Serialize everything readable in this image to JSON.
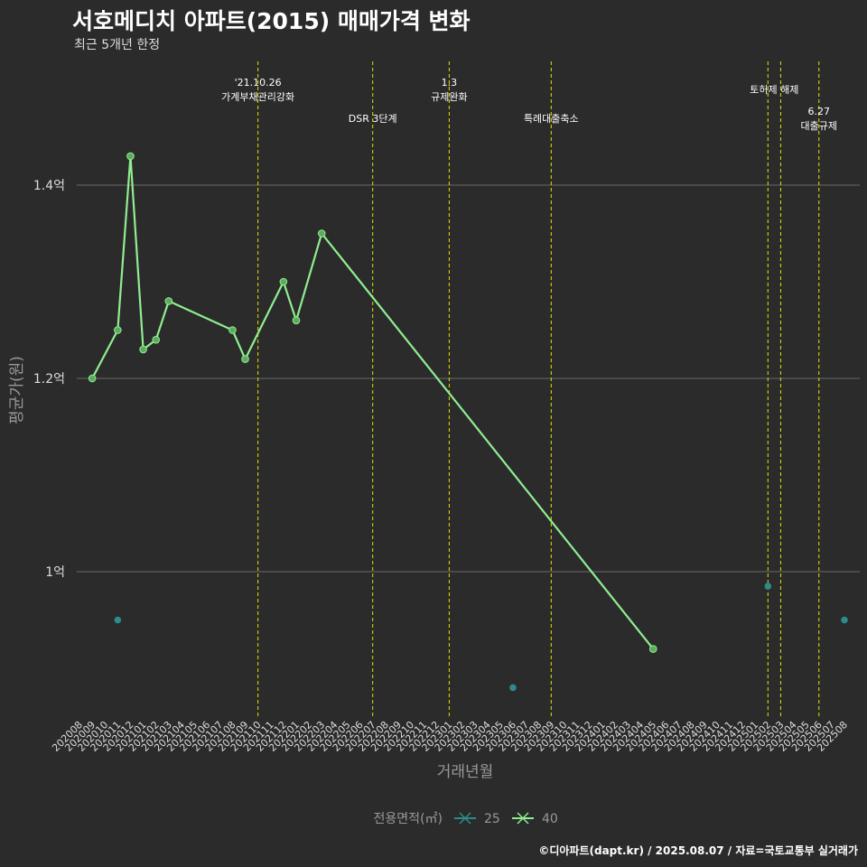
{
  "title": "서호메디치 아파트(2015) 매매가격 변화",
  "subtitle": "최근 5개년 한정",
  "caption": "©디아파트(dapt.kr) / 2025.08.07 / 자료=국토교통부 실거래가",
  "chart_data": {
    "type": "line",
    "xlabel": "거래년월",
    "ylabel": "평균가(원)",
    "ylim": [
      0.85,
      1.55
    ],
    "yticks": [
      {
        "value": 1.0,
        "label": "1억"
      },
      {
        "value": 1.2,
        "label": "1.2억"
      },
      {
        "value": 1.4,
        "label": "1.4억"
      }
    ],
    "x": [
      "202008",
      "202009",
      "202010",
      "202011",
      "202012",
      "202101",
      "202102",
      "202103",
      "202104",
      "202105",
      "202106",
      "202107",
      "202108",
      "202109",
      "202110",
      "202111",
      "202112",
      "202201",
      "202202",
      "202203",
      "202204",
      "202205",
      "202206",
      "202207",
      "202208",
      "202209",
      "202210",
      "202211",
      "202212",
      "202301",
      "202302",
      "202303",
      "202304",
      "202305",
      "202306",
      "202307",
      "202308",
      "202309",
      "202310",
      "202311",
      "202312",
      "202401",
      "202402",
      "202403",
      "202404",
      "202405",
      "202406",
      "202407",
      "202408",
      "202409",
      "202410",
      "202411",
      "202412",
      "202501",
      "202502",
      "202503",
      "202504",
      "202505",
      "202506",
      "202507",
      "202508"
    ],
    "legend_title": "전용면적(㎡)",
    "series": [
      {
        "name": "25",
        "color": "#2e8b8b",
        "points": [
          {
            "x": "202011",
            "y": 0.95
          },
          {
            "x": "202306",
            "y": 0.88
          },
          {
            "x": "202502",
            "y": 0.985
          },
          {
            "x": "202508",
            "y": 0.95
          }
        ]
      },
      {
        "name": "40",
        "color": "#90ee90",
        "points": [
          {
            "x": "202009",
            "y": 1.2
          },
          {
            "x": "202011",
            "y": 1.25
          },
          {
            "x": "202012",
            "y": 1.43
          },
          {
            "x": "202101",
            "y": 1.23
          },
          {
            "x": "202102",
            "y": 1.24
          },
          {
            "x": "202103",
            "y": 1.28
          },
          {
            "x": "202108",
            "y": 1.25
          },
          {
            "x": "202109",
            "y": 1.22
          },
          {
            "x": "202112",
            "y": 1.3
          },
          {
            "x": "202201",
            "y": 1.26
          },
          {
            "x": "202203",
            "y": 1.35
          },
          {
            "x": "202405",
            "y": 0.92
          }
        ]
      }
    ],
    "events": [
      {
        "x": "202110",
        "lines": [
          "'21.10.26",
          "가계부채관리강화"
        ],
        "row": "top"
      },
      {
        "x": "202207",
        "lines": [
          "DSR 3단계"
        ],
        "row": "bottom"
      },
      {
        "x": "202301",
        "lines": [
          "1.3",
          "규제완화"
        ],
        "row": "top"
      },
      {
        "x": "202309",
        "lines": [
          "특례대출축소"
        ],
        "row": "bottom"
      },
      {
        "x": "202502",
        "lines": [],
        "row": "top"
      },
      {
        "x": "202503",
        "lines": [
          "토허제 해제"
        ],
        "row": "mid",
        "anchor": "202502.5"
      },
      {
        "x": "202506",
        "lines": [
          "6.27",
          "대출규제"
        ],
        "row": "low"
      }
    ],
    "grid": true
  }
}
